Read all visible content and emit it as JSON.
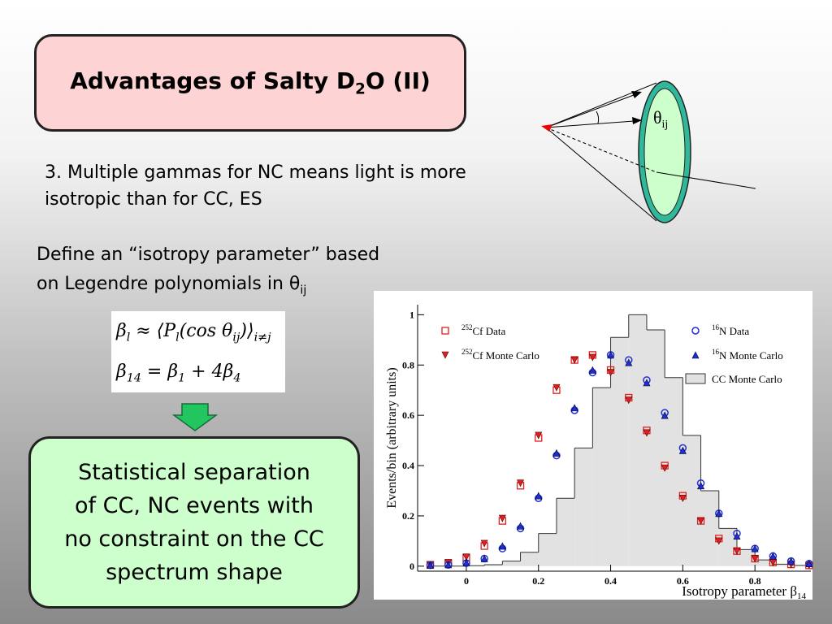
{
  "slide": {
    "title_parts": [
      "Advantages of Salty D",
      "2",
      "O (II)"
    ],
    "bullet": "3.  Multiple gammas for NC means light is more isotropic than for CC, ES",
    "define_lines": [
      "Define an “isotropy parameter” based",
      "on Legendre polynomials in θ"
    ],
    "define_sub": "ij",
    "equation_1": [
      "β",
      "l",
      " ≈ ⟨P",
      "l",
      "(cos θ",
      "ij",
      ")⟩",
      "i≠j"
    ],
    "equation_2": [
      "β",
      "14",
      " = β",
      "1",
      " + 4β",
      "4"
    ],
    "diagram_label": [
      "θ",
      "ij"
    ],
    "conclusion_lines": [
      "Statistical separation",
      "of CC, NC events with",
      "no constraint on the CC",
      "spectrum shape"
    ]
  },
  "chart_data": {
    "type": "scatter",
    "y_label": "Events/bin (arbitrary units)",
    "x_label_parts": [
      "Isotropy parameter β",
      "14"
    ],
    "xlim": [
      -0.135,
      0.955
    ],
    "ylim": [
      -0.02,
      1.04
    ],
    "xticks": [
      0,
      0.2,
      0.4,
      0.6,
      0.8
    ],
    "yticks": [
      0,
      0.2,
      0.4,
      0.6,
      0.8,
      1
    ],
    "x": [
      -0.1,
      -0.05,
      0,
      0.05,
      0.1,
      0.15,
      0.2,
      0.25,
      0.3,
      0.35,
      0.4,
      0.45,
      0.5,
      0.55,
      0.6,
      0.65,
      0.7,
      0.75,
      0.8,
      0.85,
      0.9,
      0.95
    ],
    "series": [
      {
        "name": "252Cf Data",
        "color": "#e02020",
        "marker": "square-open",
        "values": [
          0.005,
          0.012,
          0.034,
          0.08,
          0.18,
          0.32,
          0.51,
          0.7,
          0.82,
          0.84,
          0.78,
          0.67,
          0.54,
          0.4,
          0.28,
          0.18,
          0.11,
          0.06,
          0.03,
          0.015,
          0.007,
          0.003
        ]
      },
      {
        "name": "252Cf Monte Carlo",
        "color": "#e02020",
        "marker": "triangle-down",
        "values": [
          0.006,
          0.014,
          0.036,
          0.09,
          0.19,
          0.33,
          0.52,
          0.71,
          0.82,
          0.83,
          0.77,
          0.66,
          0.53,
          0.39,
          0.27,
          0.18,
          0.1,
          0.06,
          0.03,
          0.014,
          0.007,
          0.003
        ]
      },
      {
        "name": "16N Data",
        "color": "#2030d0",
        "marker": "circle-open",
        "values": [
          0.004,
          0.005,
          0.012,
          0.03,
          0.07,
          0.15,
          0.27,
          0.44,
          0.62,
          0.77,
          0.84,
          0.82,
          0.74,
          0.61,
          0.47,
          0.33,
          0.21,
          0.13,
          0.07,
          0.04,
          0.02,
          0.01
        ]
      },
      {
        "name": "16N Monte Carlo",
        "color": "#2030d0",
        "marker": "triangle-up",
        "values": [
          0.004,
          0.006,
          0.014,
          0.03,
          0.08,
          0.16,
          0.28,
          0.45,
          0.63,
          0.78,
          0.84,
          0.81,
          0.73,
          0.6,
          0.46,
          0.32,
          0.21,
          0.12,
          0.07,
          0.04,
          0.02,
          0.01
        ]
      },
      {
        "name": "CC Monte Carlo",
        "color": "#e2e2e2",
        "marker": "histogram",
        "bins": [
          -0.1,
          -0.05,
          0,
          0.05,
          0.1,
          0.15,
          0.2,
          0.25,
          0.3,
          0.35,
          0.4,
          0.45,
          0.5,
          0.55,
          0.6,
          0.65,
          0.7,
          0.75,
          0.8,
          0.85,
          0.9,
          0.95
        ],
        "values": [
          0,
          0,
          0.002,
          0.006,
          0.02,
          0.055,
          0.13,
          0.27,
          0.47,
          0.71,
          0.91,
          1.0,
          0.94,
          0.75,
          0.52,
          0.3,
          0.15,
          0.066,
          0.025,
          0.008,
          0.003
        ]
      }
    ]
  }
}
